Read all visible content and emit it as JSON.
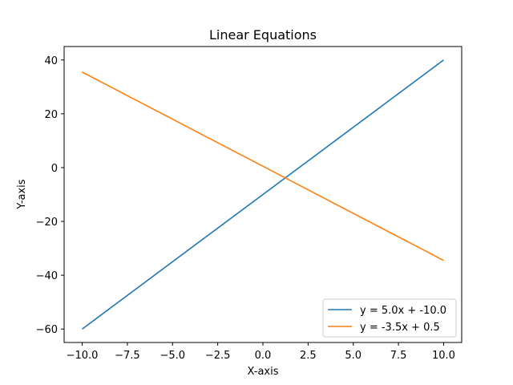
{
  "chart_data": {
    "type": "line",
    "title": "Linear Equations",
    "xlabel": "X-axis",
    "ylabel": "Y-axis",
    "xlim": [
      -11,
      11
    ],
    "ylim": [
      -65,
      45
    ],
    "xticks": [
      -10.0,
      -7.5,
      -5.0,
      -2.5,
      0.0,
      2.5,
      5.0,
      7.5,
      10.0
    ],
    "xtick_labels": [
      "−10.0",
      "−7.5",
      "−5.0",
      "−2.5",
      "0.0",
      "2.5",
      "5.0",
      "7.5",
      "10.0"
    ],
    "yticks": [
      40,
      20,
      0,
      -20,
      -40,
      -60
    ],
    "ytick_labels": [
      "40",
      "20",
      "0",
      "−20",
      "−40",
      "−60"
    ],
    "grid": false,
    "legend_position": "bottom-right",
    "series": [
      {
        "name": "y = 5.0x + -10.0",
        "color": "#1f77b4",
        "x": [
          -10,
          10
        ],
        "y": [
          -60,
          40
        ]
      },
      {
        "name": "y = -3.5x + 0.5",
        "color": "#ff7f0e",
        "x": [
          -10,
          10
        ],
        "y": [
          35.5,
          -34.5
        ]
      }
    ]
  }
}
